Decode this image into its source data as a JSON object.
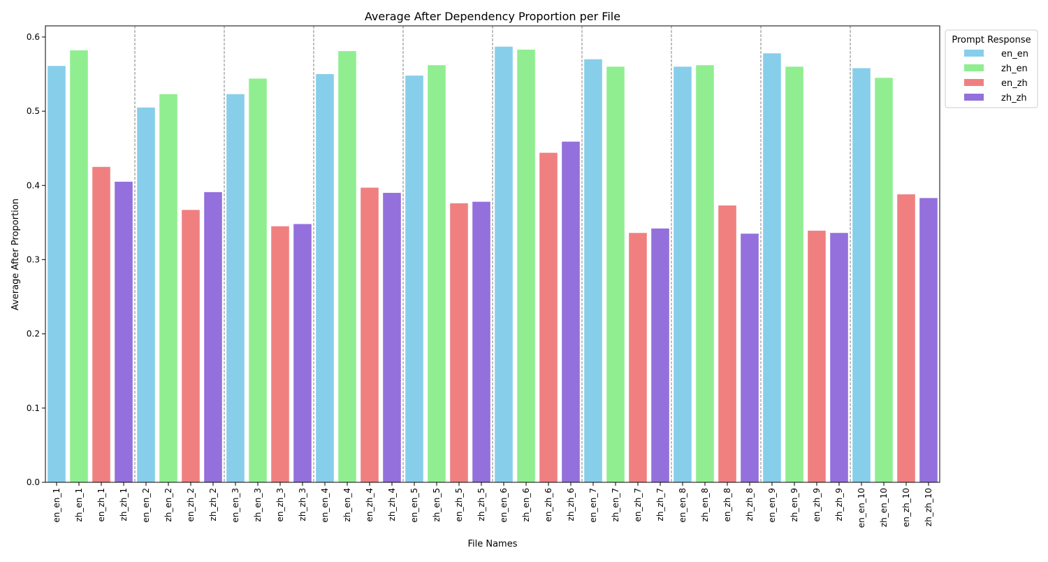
{
  "chart_data": {
    "type": "bar",
    "title": "Average After Dependency Proportion per File",
    "xlabel": "File Names",
    "ylabel": "Average After Proportion",
    "ylim": [
      0,
      0.615
    ],
    "yticks": [
      "0.0",
      "0.1",
      "0.2",
      "0.3",
      "0.4",
      "0.5",
      "0.6"
    ],
    "legend": {
      "title": "Prompt Response",
      "placement": "top-right-outside",
      "entries": [
        {
          "name": "en_en",
          "color": "#87CEEB"
        },
        {
          "name": "zh_en",
          "color": "#90EE90"
        },
        {
          "name": "en_zh",
          "color": "#F08080"
        },
        {
          "name": "zh_zh",
          "color": "#9370DB"
        }
      ]
    },
    "group_separators": "dashed-gray",
    "categories": [
      "en_en_1",
      "zh_en_1",
      "en_zh_1",
      "zh_zh_1",
      "en_en_2",
      "zh_en_2",
      "en_zh_2",
      "zh_zh_2",
      "en_en_3",
      "zh_en_3",
      "en_zh_3",
      "zh_zh_3",
      "en_en_4",
      "zh_en_4",
      "en_zh_4",
      "zh_zh_4",
      "en_en_5",
      "zh_en_5",
      "en_zh_5",
      "zh_zh_5",
      "en_en_6",
      "zh_en_6",
      "en_zh_6",
      "zh_zh_6",
      "en_en_7",
      "zh_en_7",
      "en_zh_7",
      "zh_zh_7",
      "en_en_8",
      "zh_en_8",
      "en_zh_8",
      "zh_zh_8",
      "en_en_9",
      "zh_en_9",
      "en_zh_9",
      "zh_zh_9",
      "en_en_10",
      "zh_en_10",
      "en_zh_10",
      "zh_zh_10"
    ],
    "values": [
      0.561,
      0.582,
      0.425,
      0.405,
      0.505,
      0.523,
      0.367,
      0.391,
      0.523,
      0.544,
      0.345,
      0.348,
      0.55,
      0.581,
      0.397,
      0.39,
      0.548,
      0.562,
      0.376,
      0.378,
      0.587,
      0.583,
      0.444,
      0.459,
      0.57,
      0.56,
      0.336,
      0.342,
      0.56,
      0.562,
      0.373,
      0.335,
      0.578,
      0.56,
      0.339,
      0.336,
      0.558,
      0.545,
      0.388,
      0.383
    ]
  }
}
